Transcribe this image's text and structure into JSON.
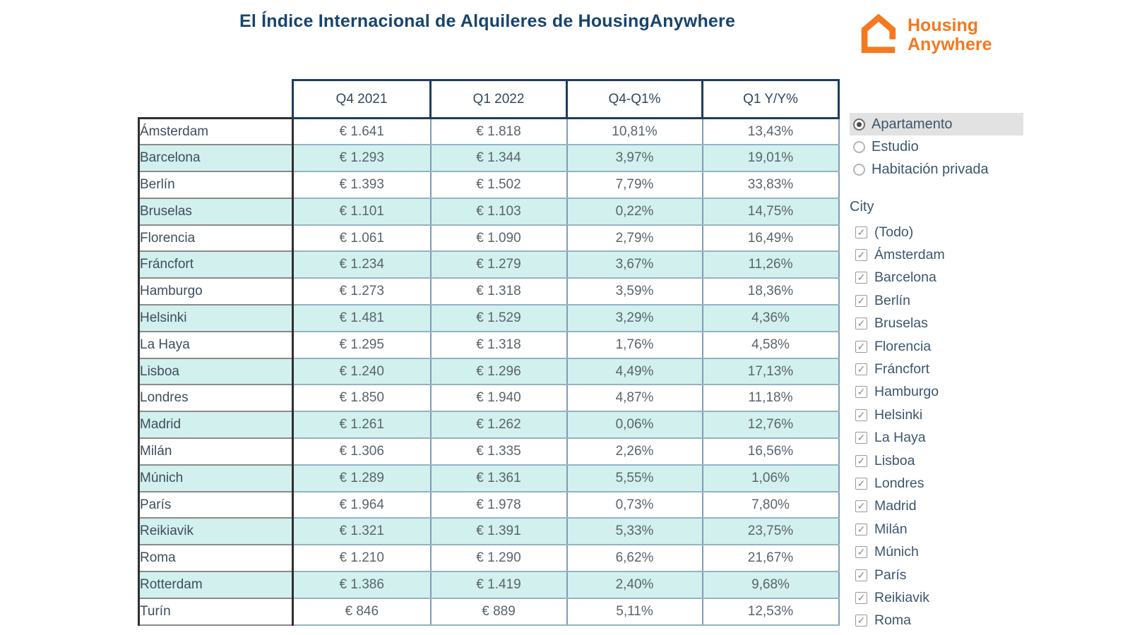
{
  "title": "El Índice Internacional de Alquileres de HousingAnywhere",
  "logo": {
    "line1": "Housing",
    "line2": "Anywhere",
    "color": "#f4791f"
  },
  "table": {
    "columns": [
      "Q4 2021",
      "Q1 2022",
      "Q4-Q1%",
      "Q1 Y/Y%"
    ],
    "stripe_color": "#d2f0ee",
    "rows": [
      {
        "city": "Ámsterdam",
        "q4_2021": "€ 1.641",
        "q1_2022": "€ 1.818",
        "q4_q1_pct": "10,81%",
        "q1_yy_pct": "13,43%"
      },
      {
        "city": "Barcelona",
        "q4_2021": "€ 1.293",
        "q1_2022": "€ 1.344",
        "q4_q1_pct": "3,97%",
        "q1_yy_pct": "19,01%"
      },
      {
        "city": "Berlín",
        "q4_2021": "€ 1.393",
        "q1_2022": "€ 1.502",
        "q4_q1_pct": "7,79%",
        "q1_yy_pct": "33,83%"
      },
      {
        "city": "Bruselas",
        "q4_2021": "€ 1.101",
        "q1_2022": "€ 1.103",
        "q4_q1_pct": "0,22%",
        "q1_yy_pct": "14,75%"
      },
      {
        "city": "Florencia",
        "q4_2021": "€ 1.061",
        "q1_2022": "€ 1.090",
        "q4_q1_pct": "2,79%",
        "q1_yy_pct": "16,49%"
      },
      {
        "city": "Fráncfort",
        "q4_2021": "€ 1.234",
        "q1_2022": "€ 1.279",
        "q4_q1_pct": "3,67%",
        "q1_yy_pct": "11,26%"
      },
      {
        "city": "Hamburgo",
        "q4_2021": "€ 1.273",
        "q1_2022": "€ 1.318",
        "q4_q1_pct": "3,59%",
        "q1_yy_pct": "18,36%"
      },
      {
        "city": "Helsinki",
        "q4_2021": "€ 1.481",
        "q1_2022": "€ 1.529",
        "q4_q1_pct": "3,29%",
        "q1_yy_pct": "4,36%"
      },
      {
        "city": "La Haya",
        "q4_2021": "€ 1.295",
        "q1_2022": "€ 1.318",
        "q4_q1_pct": "1,76%",
        "q1_yy_pct": "4,58%"
      },
      {
        "city": "Lisboa",
        "q4_2021": "€ 1.240",
        "q1_2022": "€ 1.296",
        "q4_q1_pct": "4,49%",
        "q1_yy_pct": "17,13%"
      },
      {
        "city": "Londres",
        "q4_2021": "€ 1.850",
        "q1_2022": "€ 1.940",
        "q4_q1_pct": "4,87%",
        "q1_yy_pct": "11,18%"
      },
      {
        "city": "Madrid",
        "q4_2021": "€ 1.261",
        "q1_2022": "€ 1.262",
        "q4_q1_pct": "0,06%",
        "q1_yy_pct": "12,76%"
      },
      {
        "city": "Milán",
        "q4_2021": "€ 1.306",
        "q1_2022": "€ 1.335",
        "q4_q1_pct": "2,26%",
        "q1_yy_pct": "16,56%"
      },
      {
        "city": "Múnich",
        "q4_2021": "€ 1.289",
        "q1_2022": "€ 1.361",
        "q4_q1_pct": "5,55%",
        "q1_yy_pct": "1,06%"
      },
      {
        "city": "París",
        "q4_2021": "€ 1.964",
        "q1_2022": "€ 1.978",
        "q4_q1_pct": "0,73%",
        "q1_yy_pct": "7,80%"
      },
      {
        "city": "Reikiavik",
        "q4_2021": "€ 1.321",
        "q1_2022": "€ 1.391",
        "q4_q1_pct": "5,33%",
        "q1_yy_pct": "23,75%"
      },
      {
        "city": "Roma",
        "q4_2021": "€ 1.210",
        "q1_2022": "€ 1.290",
        "q4_q1_pct": "6,62%",
        "q1_yy_pct": "21,67%"
      },
      {
        "city": "Rotterdam",
        "q4_2021": "€ 1.386",
        "q1_2022": "€ 1.419",
        "q4_q1_pct": "2,40%",
        "q1_yy_pct": "9,68%"
      },
      {
        "city": "Turín",
        "q4_2021": "€ 846",
        "q1_2022": "€ 889",
        "q4_q1_pct": "5,11%",
        "q1_yy_pct": "12,53%"
      }
    ]
  },
  "filters": {
    "property_type": {
      "options": [
        {
          "label": "Apartamento",
          "selected": true
        },
        {
          "label": "Estudio",
          "selected": false
        },
        {
          "label": "Habitación privada",
          "selected": false
        }
      ]
    },
    "city": {
      "label": "City",
      "all_checked": true,
      "options": [
        "(Todo)",
        "Ámsterdam",
        "Barcelona",
        "Berlín",
        "Bruselas",
        "Florencia",
        "Fráncfort",
        "Hamburgo",
        "Helsinki",
        "La Haya",
        "Lisboa",
        "Londres",
        "Madrid",
        "Milán",
        "Múnich",
        "París",
        "Reikiavik",
        "Roma"
      ]
    }
  },
  "chart_data": {
    "type": "table",
    "title": "El Índice Internacional de Alquileres de HousingAnywhere",
    "columns": [
      "City",
      "Q4 2021 (EUR)",
      "Q1 2022 (EUR)",
      "Q4-Q1%",
      "Q1 Y/Y%"
    ],
    "rows": [
      [
        "Ámsterdam",
        1641,
        1818,
        10.81,
        13.43
      ],
      [
        "Barcelona",
        1293,
        1344,
        3.97,
        19.01
      ],
      [
        "Berlín",
        1393,
        1502,
        7.79,
        33.83
      ],
      [
        "Bruselas",
        1101,
        1103,
        0.22,
        14.75
      ],
      [
        "Florencia",
        1061,
        1090,
        2.79,
        16.49
      ],
      [
        "Fráncfort",
        1234,
        1279,
        3.67,
        11.26
      ],
      [
        "Hamburgo",
        1273,
        1318,
        3.59,
        18.36
      ],
      [
        "Helsinki",
        1481,
        1529,
        3.29,
        4.36
      ],
      [
        "La Haya",
        1295,
        1318,
        1.76,
        4.58
      ],
      [
        "Lisboa",
        1240,
        1296,
        4.49,
        17.13
      ],
      [
        "Londres",
        1850,
        1940,
        4.87,
        11.18
      ],
      [
        "Madrid",
        1261,
        1262,
        0.06,
        12.76
      ],
      [
        "Milán",
        1306,
        1335,
        2.26,
        16.56
      ],
      [
        "Múnich",
        1289,
        1361,
        5.55,
        1.06
      ],
      [
        "París",
        1964,
        1978,
        0.73,
        7.8
      ],
      [
        "Reikiavik",
        1321,
        1391,
        5.33,
        23.75
      ],
      [
        "Roma",
        1210,
        1290,
        6.62,
        21.67
      ],
      [
        "Rotterdam",
        1386,
        1419,
        2.4,
        9.68
      ],
      [
        "Turín",
        846,
        889,
        5.11,
        12.53
      ]
    ]
  }
}
